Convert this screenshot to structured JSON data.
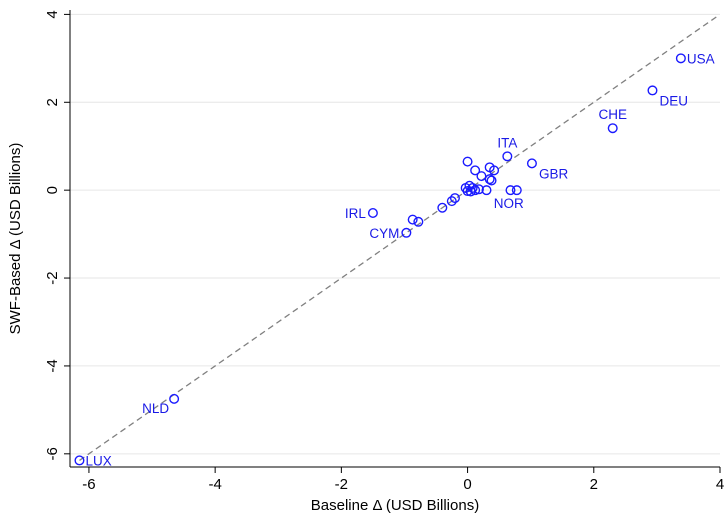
{
  "chart_data": {
    "type": "scatter",
    "title": "",
    "xlabel": "Baseline Δ (USD Billions)",
    "ylabel": "SWF-Based Δ (USD Billions)",
    "xlim": [
      -6.3,
      4.0
    ],
    "ylim": [
      -6.3,
      4.1
    ],
    "xticks": [
      -6,
      -4,
      -2,
      0,
      2,
      4
    ],
    "yticks": [
      -6,
      -4,
      -2,
      0,
      2,
      4
    ],
    "xtick_labels": [
      "-6",
      "-4",
      "-2",
      "0",
      "2",
      "4"
    ],
    "ytick_labels": [
      "-6",
      "-4",
      "-2",
      "0",
      "2",
      "4"
    ],
    "grid": "horizontal",
    "reference_line": "45-degree dashed line y = x",
    "marker": "hollow circle",
    "colors": {
      "points": "#1a1aff",
      "labels": "#1a1ae6",
      "reference": "#808080",
      "grid": "#e6e6e6"
    },
    "points": [
      {
        "x": 3.38,
        "y": 3.0,
        "label": "USA",
        "label_pos": "right"
      },
      {
        "x": 2.93,
        "y": 2.27,
        "label": "DEU",
        "label_pos": "right-below"
      },
      {
        "x": 2.3,
        "y": 1.41,
        "label": "CHE",
        "label_pos": "above"
      },
      {
        "x": 0.63,
        "y": 0.77,
        "label": "ITA",
        "label_pos": "above"
      },
      {
        "x": 1.02,
        "y": 0.61,
        "label": "GBR",
        "label_pos": "right-below"
      },
      {
        "x": 0.78,
        "y": 0.0,
        "label": "NOR",
        "label_pos": "below"
      },
      {
        "x": -1.5,
        "y": -0.52,
        "label": "IRL",
        "label_pos": "left"
      },
      {
        "x": -0.97,
        "y": -0.97,
        "label": "CYM",
        "label_pos": "left"
      },
      {
        "x": -4.65,
        "y": -4.75,
        "label": "NLD",
        "label_pos": "left-below"
      },
      {
        "x": -6.15,
        "y": -6.15,
        "label": "LUX",
        "label_pos": "right"
      },
      {
        "x": 0.0,
        "y": 0.65,
        "label": ""
      },
      {
        "x": 0.12,
        "y": 0.45,
        "label": ""
      },
      {
        "x": 0.35,
        "y": 0.52,
        "label": ""
      },
      {
        "x": 0.42,
        "y": 0.45,
        "label": ""
      },
      {
        "x": 0.22,
        "y": 0.32,
        "label": ""
      },
      {
        "x": 0.35,
        "y": 0.25,
        "label": ""
      },
      {
        "x": 0.38,
        "y": 0.22,
        "label": ""
      },
      {
        "x": 0.68,
        "y": 0.0,
        "label": ""
      },
      {
        "x": 0.3,
        "y": 0.0,
        "label": ""
      },
      {
        "x": 0.18,
        "y": 0.02,
        "label": ""
      },
      {
        "x": 0.12,
        "y": 0.0,
        "label": ""
      },
      {
        "x": 0.08,
        "y": 0.05,
        "label": ""
      },
      {
        "x": 0.03,
        "y": 0.1,
        "label": ""
      },
      {
        "x": -0.03,
        "y": 0.05,
        "label": ""
      },
      {
        "x": 0.0,
        "y": -0.02,
        "label": ""
      },
      {
        "x": 0.05,
        "y": -0.03,
        "label": ""
      },
      {
        "x": -0.2,
        "y": -0.18,
        "label": ""
      },
      {
        "x": -0.25,
        "y": -0.25,
        "label": ""
      },
      {
        "x": -0.4,
        "y": -0.4,
        "label": ""
      },
      {
        "x": -0.78,
        "y": -0.72,
        "label": ""
      },
      {
        "x": -0.87,
        "y": -0.67,
        "label": ""
      }
    ]
  }
}
